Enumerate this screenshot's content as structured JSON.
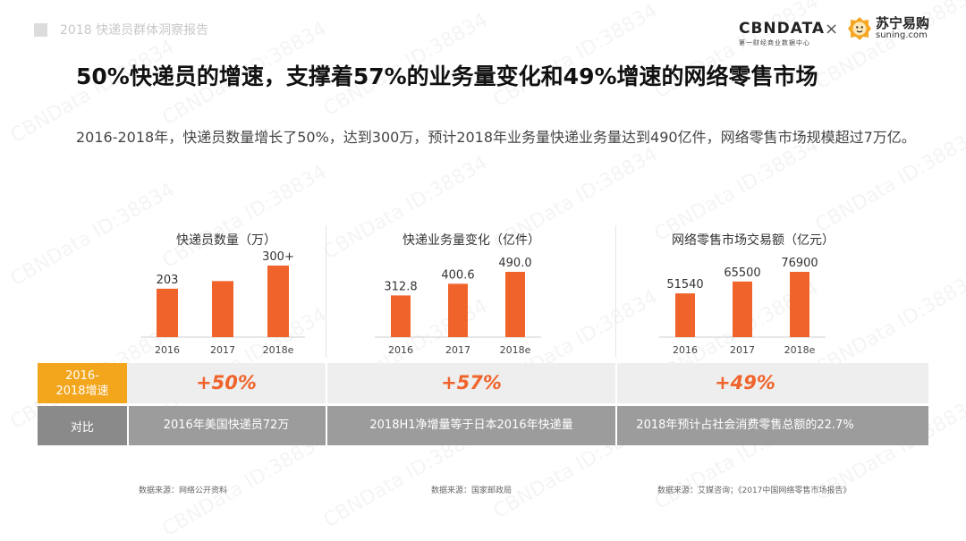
{
  "header": {
    "report_title": "2018 快递员群体洞察报告"
  },
  "logos": {
    "cbn_main": "CBNDATA",
    "cbn_sub": "第一财经商业数据中心",
    "times": "×",
    "suning_cn": "苏宁易购",
    "suning_en": "suning.com"
  },
  "title": "50%快递员的增速，支撑着57%的业务量变化和49%增速的网络零售市场",
  "summary": "2016-2018年，快递员数量增长了50%，达到300万，预计2018年业务量快递业务量达到490亿件，网络零售市场规模超过7万亿。",
  "watermark": "CBNData ID:38834",
  "chart_data": [
    {
      "type": "bar",
      "title": "快递员数量（万）",
      "categories": [
        "2016",
        "2017",
        "2018e"
      ],
      "values": [
        203,
        235,
        300
      ],
      "data_labels": [
        "203",
        "",
        "300+"
      ],
      "color": "#f0642c"
    },
    {
      "type": "bar",
      "title": "快递业务量变化（亿件）",
      "categories": [
        "2016",
        "2017",
        "2018e"
      ],
      "values": [
        312.8,
        400.6,
        490.0
      ],
      "data_labels": [
        "312.8",
        "400.6",
        "490.0"
      ],
      "color": "#f0642c"
    },
    {
      "type": "bar",
      "title": "网络零售市场交易额（亿元）",
      "categories": [
        "2016",
        "2017",
        "2018e"
      ],
      "values": [
        51540,
        65500,
        76900
      ],
      "data_labels": [
        "51540",
        "65500",
        "76900"
      ],
      "color": "#f0642c"
    }
  ],
  "table": {
    "growth_label": "2016-\n2018增速",
    "growth_label_line1": "2016-",
    "growth_label_line2": "2018增速",
    "growth_values": [
      "+50%",
      "+57%",
      "+49%"
    ],
    "compare_label": "对比",
    "compare_values": [
      "2016年美国快递员72万",
      "2018H1净增量等于日本2016年快递量",
      "2018年预计占社会消费零售总额的22.7%"
    ]
  },
  "sources": [
    "数据来源：网络公开资料",
    "数据来源：国家邮政局",
    "数据来源：艾媒咨询；《2017中国网络零售市场报告》"
  ]
}
